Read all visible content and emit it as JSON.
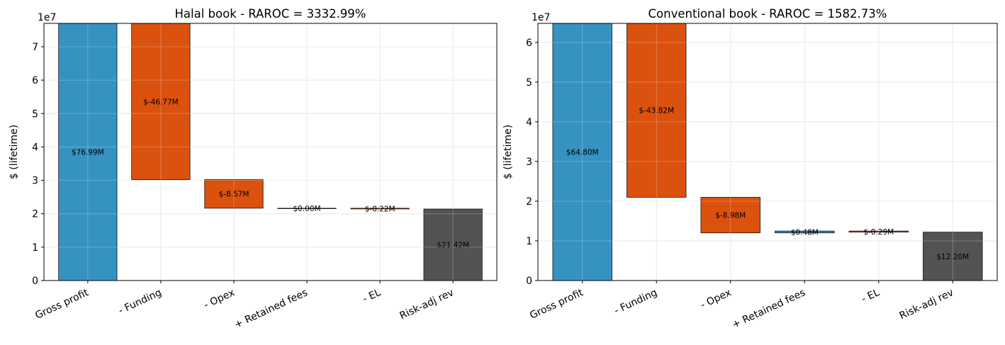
{
  "chart_data": [
    {
      "type": "bar",
      "subtype": "waterfall",
      "title": "Halal book  -  RAROC = 3332.99%",
      "ylabel": "$ (lifetime)",
      "y_scale_label": "1e7",
      "ylim": [
        0,
        76990000
      ],
      "yticks": [
        0,
        1,
        2,
        3,
        4,
        5,
        6,
        7
      ],
      "grid": true,
      "categories": [
        "Gross profit",
        "- Funding",
        "- Opex",
        "+ Retained fees",
        "- EL",
        "Risk-adj rev"
      ],
      "values": [
        76990000,
        -46770000,
        -8570000,
        0,
        -220000,
        21420000
      ],
      "data_labels": [
        "$76.99M",
        "$-46.77M",
        "$-8.57M",
        "$0.00M",
        "$-0.22M",
        "$21.42M"
      ],
      "total_index": 5
    },
    {
      "type": "bar",
      "subtype": "waterfall",
      "title": "Conventional book  -  RAROC = 1582.73%",
      "ylabel": "$ (lifetime)",
      "y_scale_label": "1e7",
      "ylim": [
        0,
        64800000
      ],
      "yticks": [
        0,
        1,
        2,
        3,
        4,
        5,
        6
      ],
      "grid": true,
      "categories": [
        "Gross profit",
        "- Funding",
        "- Opex",
        "+ Retained fees",
        "- EL",
        "Risk-adj rev"
      ],
      "values": [
        64800000,
        -43820000,
        -8980000,
        480000,
        -290000,
        12200000
      ],
      "data_labels": [
        "$64.80M",
        "$-43.82M",
        "$-8.98M",
        "$0.48M",
        "$-0.29M",
        "$12.20M"
      ],
      "total_index": 5
    }
  ],
  "colors": {
    "positive": "#2b8cbe",
    "negative": "#d94801",
    "total": "#4a4a4a"
  }
}
